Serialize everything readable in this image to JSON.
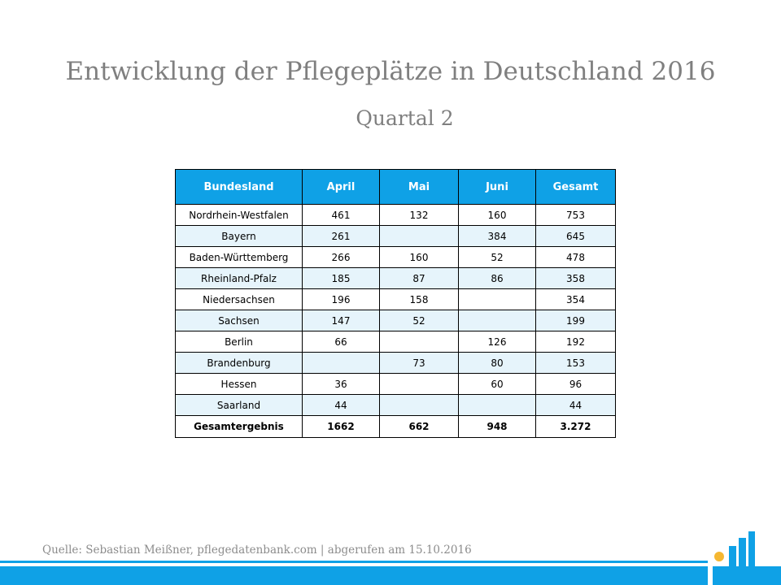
{
  "title": "Entwicklung der Pflegeplätze in Deutschland 2016",
  "subtitle": "Quartal 2",
  "table": {
    "headers": [
      "Bundesland",
      "April",
      "Mai",
      "Juni",
      "Gesamt"
    ],
    "rows": [
      [
        "Nordrhein-Westfalen",
        "461",
        "132",
        "160",
        "753"
      ],
      [
        "Bayern",
        "261",
        "",
        "384",
        "645"
      ],
      [
        "Baden-Württemberg",
        "266",
        "160",
        "52",
        "478"
      ],
      [
        "Rheinland-Pfalz",
        "185",
        "87",
        "86",
        "358"
      ],
      [
        "Niedersachsen",
        "196",
        "158",
        "",
        "354"
      ],
      [
        "Sachsen",
        "147",
        "52",
        "",
        "199"
      ],
      [
        "Berlin",
        "66",
        "",
        "126",
        "192"
      ],
      [
        "Brandenburg",
        "",
        "73",
        "80",
        "153"
      ],
      [
        "Hessen",
        "36",
        "",
        "60",
        "96"
      ],
      [
        "Saarland",
        "44",
        "",
        "",
        "44"
      ]
    ],
    "total": [
      "Gesamtergebnis",
      "1662",
      "662",
      "948",
      "3.272"
    ]
  },
  "source": "Quelle: Sebastian Meißner, pflegedatenbank.com | abgerufen am 15.10.2016",
  "colors": {
    "accent": "#0fa1e6",
    "alt_row": "#e6f4fb",
    "logo_dot": "#f5b731"
  }
}
